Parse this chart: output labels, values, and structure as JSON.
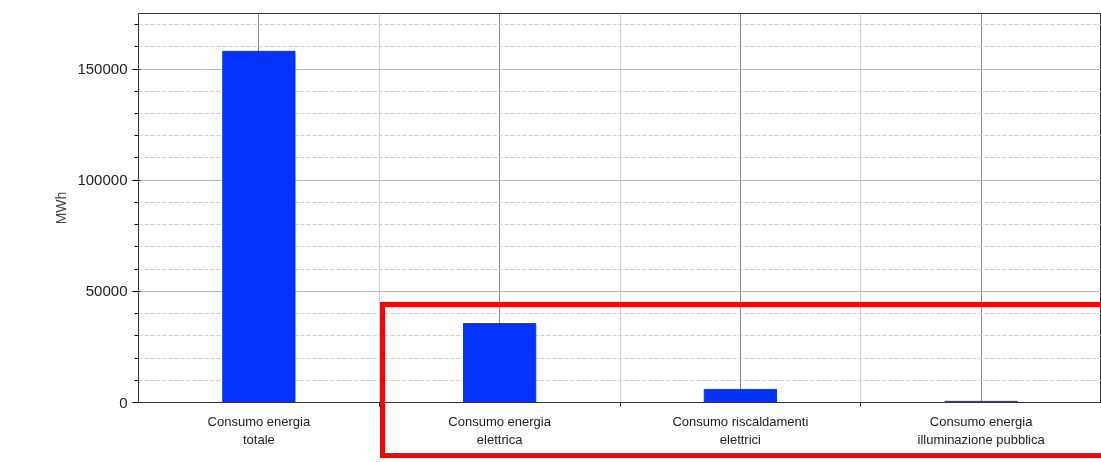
{
  "chart_data": {
    "type": "bar",
    "ylabel": "MWh",
    "categories": [
      "Consumo energia\ntotale",
      "Consumo energia\nelettrica",
      "Consumo riscaldamenti\nelettrici",
      "Consumo energia\nilluminazione pubblica"
    ],
    "values": [
      158000,
      35500,
      5900,
      500
    ],
    "color": "#0433ff",
    "ylim": [
      0,
      175000
    ],
    "yticks": [
      0,
      50000,
      100000,
      150000
    ],
    "grid": true
  }
}
